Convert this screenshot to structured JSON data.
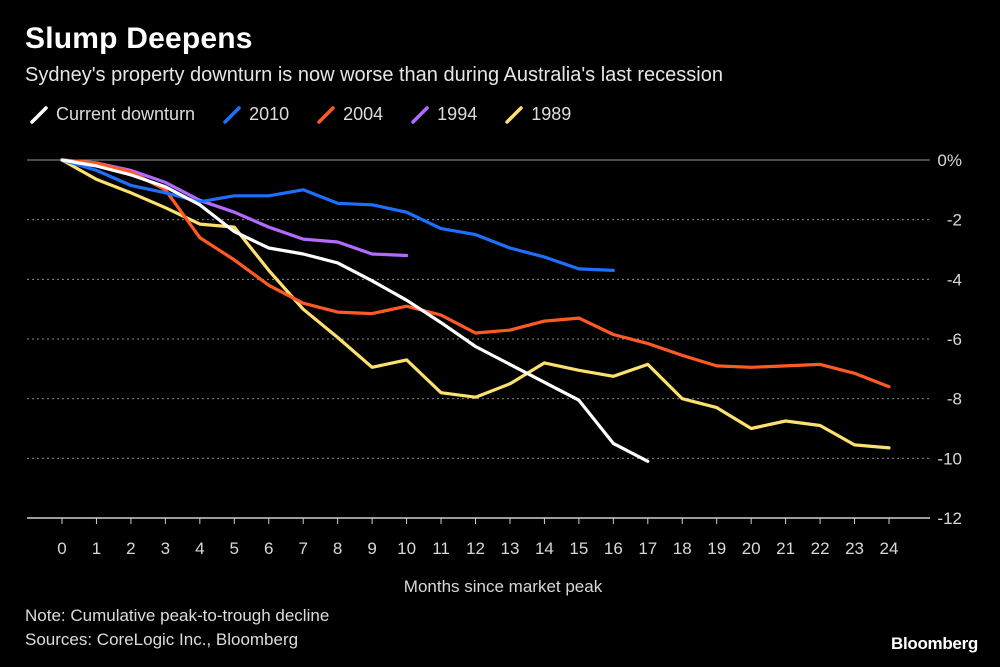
{
  "header": {
    "title": "Slump Deepens",
    "subtitle": "Sydney's property downturn is now worse than during Australia's last recession"
  },
  "footer": {
    "note": "Note: Cumulative peak-to-trough decline",
    "sources": "Sources: CoreLogic Inc., Bloomberg",
    "brand": "Bloomberg"
  },
  "chart_data": {
    "type": "line",
    "title": "Slump Deepens",
    "subtitle": "Sydney's property downturn is now worse than during Australia's last recession",
    "xlabel": "Months since market peak",
    "ylabel": "",
    "xlim": [
      0,
      24
    ],
    "ylim": [
      -12,
      0
    ],
    "x_ticks": [
      0,
      1,
      2,
      3,
      4,
      5,
      6,
      7,
      8,
      9,
      10,
      11,
      12,
      13,
      14,
      15,
      16,
      17,
      18,
      19,
      20,
      21,
      22,
      23,
      24
    ],
    "y_ticks": [
      0,
      -2,
      -4,
      -6,
      -8,
      -10,
      -12
    ],
    "y_tick_labels": [
      "0%",
      "-2",
      "-4",
      "-6",
      "-8",
      "-10",
      "-12"
    ],
    "grid": "horizontal dotted",
    "legend_position": "top-left",
    "series": [
      {
        "name": "Current downturn",
        "color": "#ffffff",
        "x": [
          0,
          1,
          2,
          3,
          4,
          5,
          6,
          7,
          8,
          9,
          10,
          11,
          12,
          13,
          14,
          15,
          16,
          17
        ],
        "values": [
          0,
          -0.2,
          -0.5,
          -0.9,
          -1.5,
          -2.4,
          -2.95,
          -3.15,
          -3.45,
          -4.05,
          -4.7,
          -5.45,
          -6.25,
          -6.85,
          -7.45,
          -8.05,
          -9.5,
          -10.1
        ]
      },
      {
        "name": "2010",
        "color": "#1f6fff",
        "x": [
          0,
          1,
          2,
          3,
          4,
          5,
          6,
          7,
          8,
          9,
          10,
          11,
          12,
          13,
          14,
          15,
          16
        ],
        "values": [
          0,
          -0.35,
          -0.85,
          -1.1,
          -1.4,
          -1.2,
          -1.2,
          -1.0,
          -1.45,
          -1.5,
          -1.75,
          -2.3,
          -2.5,
          -2.95,
          -3.25,
          -3.65,
          -3.7
        ]
      },
      {
        "name": "2004",
        "color": "#ff5a26",
        "x": [
          0,
          1,
          2,
          3,
          4,
          5,
          6,
          7,
          8,
          9,
          10,
          11,
          12,
          13,
          14,
          15,
          16,
          17,
          18,
          19,
          20,
          21,
          22,
          23,
          24
        ],
        "values": [
          0,
          -0.1,
          -0.4,
          -1.0,
          -2.6,
          -3.35,
          -4.2,
          -4.8,
          -5.1,
          -5.15,
          -4.9,
          -5.2,
          -5.8,
          -5.7,
          -5.4,
          -5.3,
          -5.85,
          -6.15,
          -6.55,
          -6.9,
          -6.95,
          -6.9,
          -6.85,
          -7.15,
          -7.6
        ]
      },
      {
        "name": "1994",
        "color": "#b36bff",
        "x": [
          0,
          1,
          2,
          3,
          4,
          5,
          6,
          7,
          8,
          9,
          10
        ],
        "values": [
          0,
          -0.1,
          -0.35,
          -0.75,
          -1.35,
          -1.75,
          -2.25,
          -2.65,
          -2.75,
          -3.15,
          -3.2
        ]
      },
      {
        "name": "1989",
        "color": "#fce16e",
        "x": [
          0,
          1,
          2,
          3,
          4,
          5,
          6,
          7,
          8,
          9,
          10,
          11,
          12,
          13,
          14,
          15,
          16,
          17,
          18,
          19,
          20,
          21,
          22,
          23,
          24
        ],
        "values": [
          0,
          -0.65,
          -1.1,
          -1.6,
          -2.15,
          -2.25,
          -3.7,
          -5.0,
          -5.95,
          -6.95,
          -6.7,
          -7.8,
          -7.95,
          -7.5,
          -6.8,
          -7.05,
          -7.25,
          -6.85,
          -8.0,
          -8.3,
          -9.0,
          -8.75,
          -8.9,
          -9.55,
          -9.65
        ]
      }
    ]
  }
}
